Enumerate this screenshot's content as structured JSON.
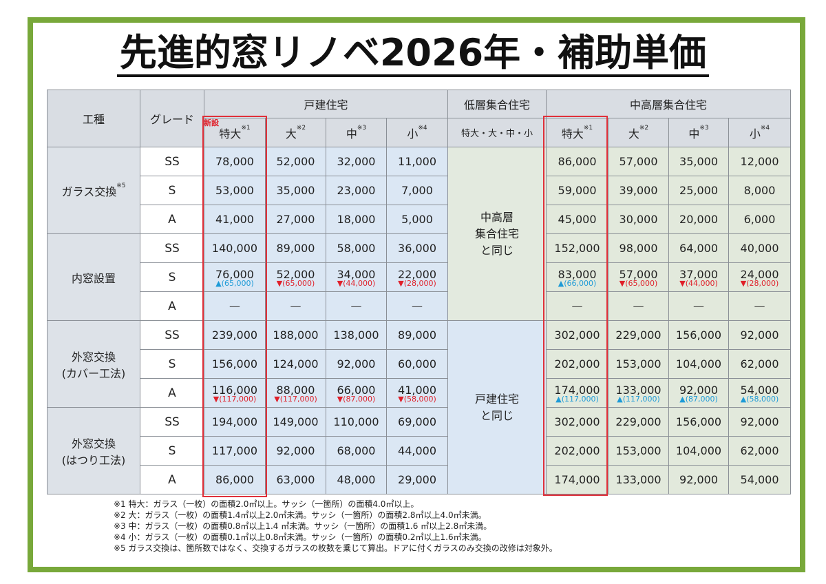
{
  "title": "先進的窓リノベ2026年・補助単価",
  "headers": {
    "work_type": "工種",
    "grade": "グレード",
    "detached": "戸建住宅",
    "lowrise": "低層集合住宅",
    "midhigh": "中高層集合住宅",
    "sizes": [
      "特大",
      "大",
      "中",
      "小"
    ],
    "size_notes": [
      "※1",
      "※2",
      "※3",
      "※4"
    ],
    "lowrise_sizes": "特大・大・中・小",
    "new_label": "新設"
  },
  "categories": [
    {
      "label": "ガラス交換",
      "note": "※5"
    },
    {
      "label": "内窓設置",
      "note": ""
    },
    {
      "label": "外窓交換\n(カバー工法)",
      "note": ""
    },
    {
      "label": "外窓交換\n(はつり工法)",
      "note": ""
    }
  ],
  "lowrise_merged": [
    "中高層\n集合住宅\nと同じ",
    "戸建住宅\nと同じ"
  ],
  "rows": [
    {
      "grade": "SS",
      "detached": [
        "78,000",
        "52,000",
        "32,000",
        "11,000"
      ],
      "midhigh": [
        "86,000",
        "57,000",
        "35,000",
        "12,000"
      ]
    },
    {
      "grade": "S",
      "detached": [
        "53,000",
        "35,000",
        "23,000",
        "7,000"
      ],
      "midhigh": [
        "59,000",
        "39,000",
        "25,000",
        "8,000"
      ]
    },
    {
      "grade": "A",
      "detached": [
        "41,000",
        "27,000",
        "18,000",
        "5,000"
      ],
      "midhigh": [
        "45,000",
        "30,000",
        "20,000",
        "6,000"
      ]
    },
    {
      "grade": "SS",
      "detached": [
        "140,000",
        "89,000",
        "58,000",
        "36,000"
      ],
      "midhigh": [
        "152,000",
        "98,000",
        "64,000",
        "40,000"
      ]
    },
    {
      "grade": "S",
      "detached": [
        "76,000",
        "52,000",
        "34,000",
        "22,000"
      ],
      "midhigh": [
        "83,000",
        "57,000",
        "37,000",
        "24,000"
      ],
      "detached_ann": [
        {
          "dir": "up",
          "text": "▲(65,000)"
        },
        {
          "dir": "down",
          "text": "▼(65,000)"
        },
        {
          "dir": "down",
          "text": "▼(44,000)"
        },
        {
          "dir": "down",
          "text": "▼(28,000)"
        }
      ],
      "midhigh_ann": [
        {
          "dir": "up",
          "text": "▲(66,000)"
        },
        {
          "dir": "down",
          "text": "▼(65,000)"
        },
        {
          "dir": "down",
          "text": "▼(44,000)"
        },
        {
          "dir": "down",
          "text": "▼(28,000)"
        }
      ]
    },
    {
      "grade": "A",
      "detached": [
        "—",
        "—",
        "—",
        "—"
      ],
      "midhigh": [
        "—",
        "—",
        "—",
        "—"
      ]
    },
    {
      "grade": "SS",
      "detached": [
        "239,000",
        "188,000",
        "138,000",
        "89,000"
      ],
      "midhigh": [
        "302,000",
        "229,000",
        "156,000",
        "92,000"
      ]
    },
    {
      "grade": "S",
      "detached": [
        "156,000",
        "124,000",
        "92,000",
        "60,000"
      ],
      "midhigh": [
        "202,000",
        "153,000",
        "104,000",
        "62,000"
      ]
    },
    {
      "grade": "A",
      "detached": [
        "116,000",
        "88,000",
        "66,000",
        "41,000"
      ],
      "midhigh": [
        "174,000",
        "133,000",
        "92,000",
        "54,000"
      ],
      "detached_ann": [
        {
          "dir": "down",
          "text": "▼(117,000)"
        },
        {
          "dir": "down",
          "text": "▼(117,000)"
        },
        {
          "dir": "down",
          "text": "▼(87,000)"
        },
        {
          "dir": "down",
          "text": "▼(58,000)"
        }
      ],
      "midhigh_ann": [
        {
          "dir": "up",
          "text": "▲(117,000)"
        },
        {
          "dir": "up",
          "text": "▲(117,000)"
        },
        {
          "dir": "up",
          "text": "▲(87,000)"
        },
        {
          "dir": "up",
          "text": "▲(58,000)"
        }
      ]
    },
    {
      "grade": "SS",
      "detached": [
        "194,000",
        "149,000",
        "110,000",
        "69,000"
      ],
      "midhigh": [
        "302,000",
        "229,000",
        "156,000",
        "92,000"
      ]
    },
    {
      "grade": "S",
      "detached": [
        "117,000",
        "92,000",
        "68,000",
        "44,000"
      ],
      "midhigh": [
        "202,000",
        "153,000",
        "104,000",
        "62,000"
      ]
    },
    {
      "grade": "A",
      "detached": [
        "86,000",
        "63,000",
        "48,000",
        "29,000"
      ],
      "midhigh": [
        "174,000",
        "133,000",
        "92,000",
        "54,000"
      ]
    }
  ],
  "notes": [
    "※1 特大：ガラス（一枚）の面積2.0㎡以上。サッシ（一箇所）の面積4.0㎡以上。",
    "※2 大：ガラス（一枚）の面積1.4㎡以上2.0㎡未満。サッシ（一箇所）の面積2.8㎡以上4.0㎡未満。",
    "※3 中：ガラス（一枚）の面積0.8㎡以上1.4 ㎡未満。サッシ（一箇所）の面積1.6 ㎡以上2.8㎡未満。",
    "※4 小：ガラス（一枚）の面積0.1㎡以上0.8㎡未満。サッシ（一箇所）の面積0.2㎡以上1.6㎡未満。",
    "※5 ガラス交換は、箇所数ではなく、交換するガラスの枚数を乗じて算出。ドアに付くガラスのみ交換の改修は対象外。"
  ],
  "colors": {
    "frame": "#78a83a",
    "highlight": "#e0303a",
    "increase": "#1e9bd7",
    "decrease": "#e0202a",
    "detached_bg": "#dbe7f4",
    "midhigh_bg": "#e2e9dc"
  }
}
